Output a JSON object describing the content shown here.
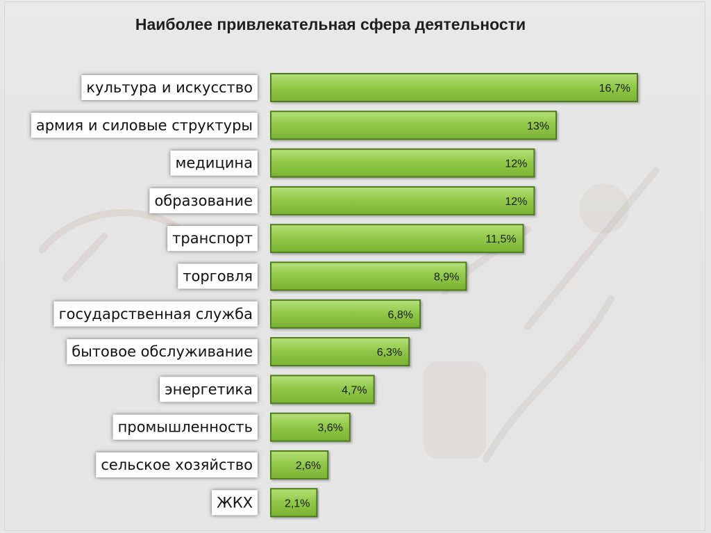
{
  "chart_data": {
    "type": "bar",
    "orientation": "horizontal",
    "title": "Наиболее привлекательная сфера деятельности",
    "categories": [
      "культура и искусство",
      "армия и силовые структуры",
      "медицина",
      "образование",
      "транспорт",
      "торговля",
      "государственная служба",
      "бытовое обслуживание",
      "энергетика",
      "промышленность",
      "сельское хозяйство",
      "ЖКХ"
    ],
    "values": [
      16.7,
      13,
      12,
      12,
      11.5,
      8.9,
      6.8,
      6.3,
      4.7,
      3.6,
      2.6,
      2.1
    ],
    "value_labels": [
      "16,7%",
      "13%",
      "12%",
      "12%",
      "11,5%",
      "8,9%",
      "6,8%",
      "6,3%",
      "4,7%",
      "3,6%",
      "2,6%",
      "2,1%"
    ],
    "unit": "%",
    "xlim": [
      0,
      16.7
    ],
    "grid": false,
    "legend": "none",
    "bar_color": "#8ec63f",
    "bar_border_color": "#4e7a1e"
  }
}
